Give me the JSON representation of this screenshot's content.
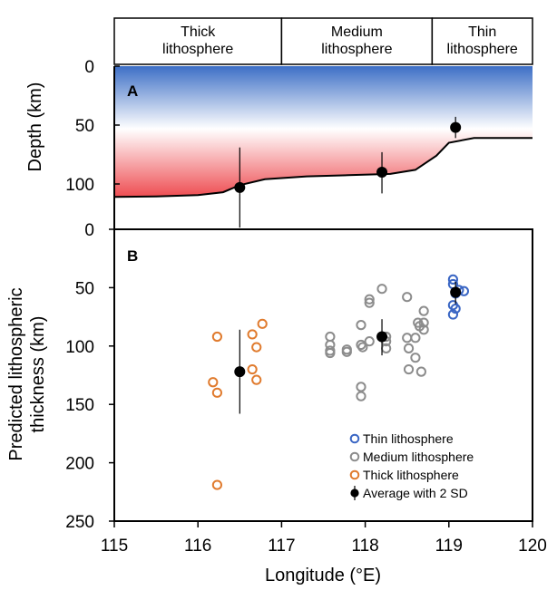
{
  "regions": [
    {
      "label_lines": [
        "Thick",
        "lithosphere"
      ],
      "x_start": 115.0,
      "x_end": 117.0
    },
    {
      "label_lines": [
        "Medium",
        "lithosphere"
      ],
      "x_start": 117.0,
      "x_end": 118.8
    },
    {
      "label_lines": [
        "Thin",
        "lithosphere"
      ],
      "x_start": 118.8,
      "x_end": 120.0
    }
  ],
  "colors": {
    "thin": "#3a66c4",
    "medium": "#8c8c8c",
    "thick": "#e07b2e",
    "average": "#000000",
    "shallow": "#3d6fc6",
    "deep": "#ee4d52"
  },
  "chart_data": [
    {
      "type": "area",
      "panel_label": "A",
      "ylabel": "Depth (km)",
      "xlim": [
        115,
        120
      ],
      "ylim": [
        0,
        110
      ],
      "y_inverted": true,
      "yticks": [
        0,
        50,
        100
      ],
      "lab_boundary": {
        "x": [
          115.0,
          115.5,
          116.0,
          116.3,
          116.5,
          116.8,
          117.3,
          117.8,
          118.3,
          118.6,
          118.85,
          119.0,
          119.3,
          120.0
        ],
        "y": [
          111,
          110.5,
          109.5,
          107,
          101,
          96,
          93.5,
          92.5,
          91.5,
          88,
          76,
          65,
          61,
          61
        ]
      },
      "averages": [
        {
          "x": 116.5,
          "y": 103,
          "y_low": 69,
          "y_high": 137
        },
        {
          "x": 118.2,
          "y": 90,
          "y_low": 73,
          "y_high": 108
        },
        {
          "x": 119.08,
          "y": 52,
          "y_low": 43,
          "y_high": 61
        }
      ]
    },
    {
      "type": "scatter",
      "panel_label": "B",
      "xlabel": "Longitude (°E)",
      "ylabel_lines": [
        "Predicted lithospheric",
        "thickness (km)"
      ],
      "xlim": [
        115,
        120
      ],
      "ylim": [
        0,
        250
      ],
      "y_inverted": true,
      "xticks": [
        115,
        116,
        117,
        118,
        119,
        120
      ],
      "yticks": [
        0,
        50,
        100,
        150,
        200,
        250
      ],
      "series": [
        {
          "name": "Thin lithosphere",
          "key": "thin",
          "points": [
            [
              119.05,
              43
            ],
            [
              119.05,
              47
            ],
            [
              119.08,
              55
            ],
            [
              119.12,
              52
            ],
            [
              119.18,
              53
            ],
            [
              119.05,
              65
            ],
            [
              119.08,
              68
            ],
            [
              119.05,
              73
            ]
          ]
        },
        {
          "name": "Medium lithosphere",
          "key": "medium",
          "points": [
            [
              117.58,
              92
            ],
            [
              117.58,
              99
            ],
            [
              117.58,
              104
            ],
            [
              117.58,
              106
            ],
            [
              117.78,
              103
            ],
            [
              117.78,
              105
            ],
            [
              117.95,
              82
            ],
            [
              117.95,
              99
            ],
            [
              117.97,
              101
            ],
            [
              117.95,
              135
            ],
            [
              117.95,
              143
            ],
            [
              118.05,
              60
            ],
            [
              118.05,
              63
            ],
            [
              118.05,
              96
            ],
            [
              118.2,
              51
            ],
            [
              118.25,
              92
            ],
            [
              118.25,
              96
            ],
            [
              118.25,
              102
            ],
            [
              118.5,
              58
            ],
            [
              118.5,
              93
            ],
            [
              118.52,
              102
            ],
            [
              118.52,
              120
            ],
            [
              118.6,
              93
            ],
            [
              118.6,
              110
            ],
            [
              118.63,
              80
            ],
            [
              118.65,
              83
            ],
            [
              118.67,
              122
            ],
            [
              118.7,
              70
            ],
            [
              118.7,
              80
            ],
            [
              118.7,
              86
            ]
          ]
        },
        {
          "name": "Thick lithosphere",
          "key": "thick",
          "points": [
            [
              116.18,
              131
            ],
            [
              116.23,
              92
            ],
            [
              116.23,
              140
            ],
            [
              116.23,
              219
            ],
            [
              116.65,
              90
            ],
            [
              116.65,
              120
            ],
            [
              116.7,
              101
            ],
            [
              116.7,
              129
            ],
            [
              116.77,
              81
            ]
          ]
        },
        {
          "name": "Average with 2 SD",
          "key": "average",
          "averages": [
            {
              "x": 116.5,
              "y": 122,
              "y_low": 86,
              "y_high": 158
            },
            {
              "x": 118.2,
              "y": 92,
              "y_low": 77,
              "y_high": 108
            },
            {
              "x": 119.08,
              "y": 54,
              "y_low": 45,
              "y_high": 64
            }
          ]
        }
      ],
      "legend": {
        "placement": "bottom-right",
        "entries": [
          {
            "label": "Thin lithosphere",
            "key": "thin"
          },
          {
            "label": "Medium lithosphere",
            "key": "medium"
          },
          {
            "label": "Thick lithosphere",
            "key": "thick"
          },
          {
            "label": "Average with 2 SD",
            "key": "average"
          }
        ]
      }
    }
  ]
}
